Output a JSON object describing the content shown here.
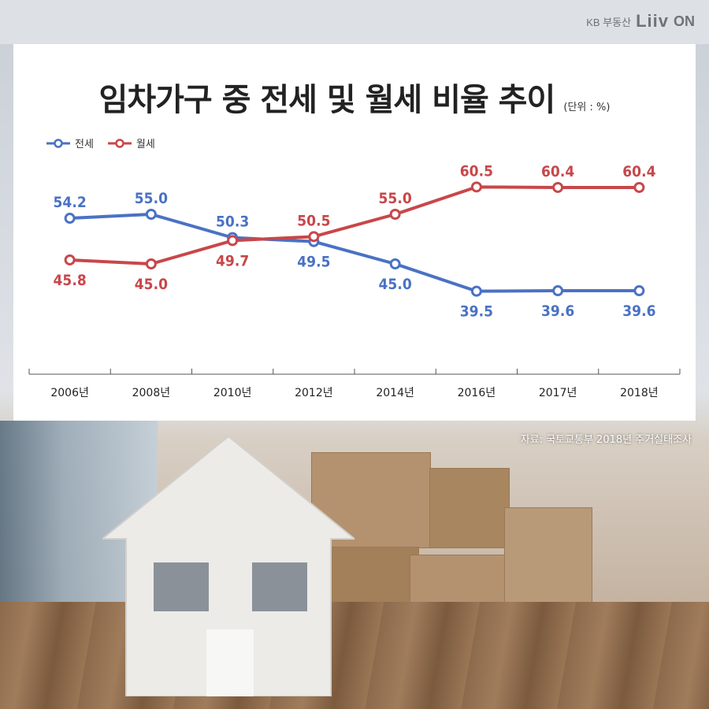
{
  "brand": {
    "kb": "KB 부동산",
    "liiv": "Liiv",
    "on": "ON"
  },
  "source": "자료: 국토교통부 2018년 주거실태조사",
  "colors": {
    "jeonse": "#4a72c4",
    "wolse": "#c8474a",
    "axis": "#555555"
  },
  "icons": {
    "house": "house-icon",
    "boxes": "box-icon"
  },
  "chart_data": {
    "type": "line",
    "title": "임차가구 중 전세 및 월세 비율 추이",
    "unit": "(단위 : %)",
    "categories": [
      "2006년",
      "2008년",
      "2010년",
      "2012년",
      "2014년",
      "2016년",
      "2017년",
      "2018년"
    ],
    "series": [
      {
        "name": "전세",
        "values": [
          54.2,
          55.0,
          50.3,
          49.5,
          45.0,
          39.5,
          39.6,
          39.6
        ]
      },
      {
        "name": "월세",
        "values": [
          45.8,
          45.0,
          49.7,
          50.5,
          55.0,
          60.5,
          60.4,
          60.4
        ]
      }
    ],
    "value_labels": {
      "전세": [
        "54.2",
        "55.0",
        "50.3",
        "49.5",
        "45.0",
        "39.5",
        "39.6",
        "39.6"
      ],
      "월세": [
        "45.8",
        "45.0",
        "49.7",
        "50.5",
        "55.0",
        "60.5",
        "60.4",
        "60.4"
      ]
    },
    "legend": "top-left",
    "grid": false
  }
}
